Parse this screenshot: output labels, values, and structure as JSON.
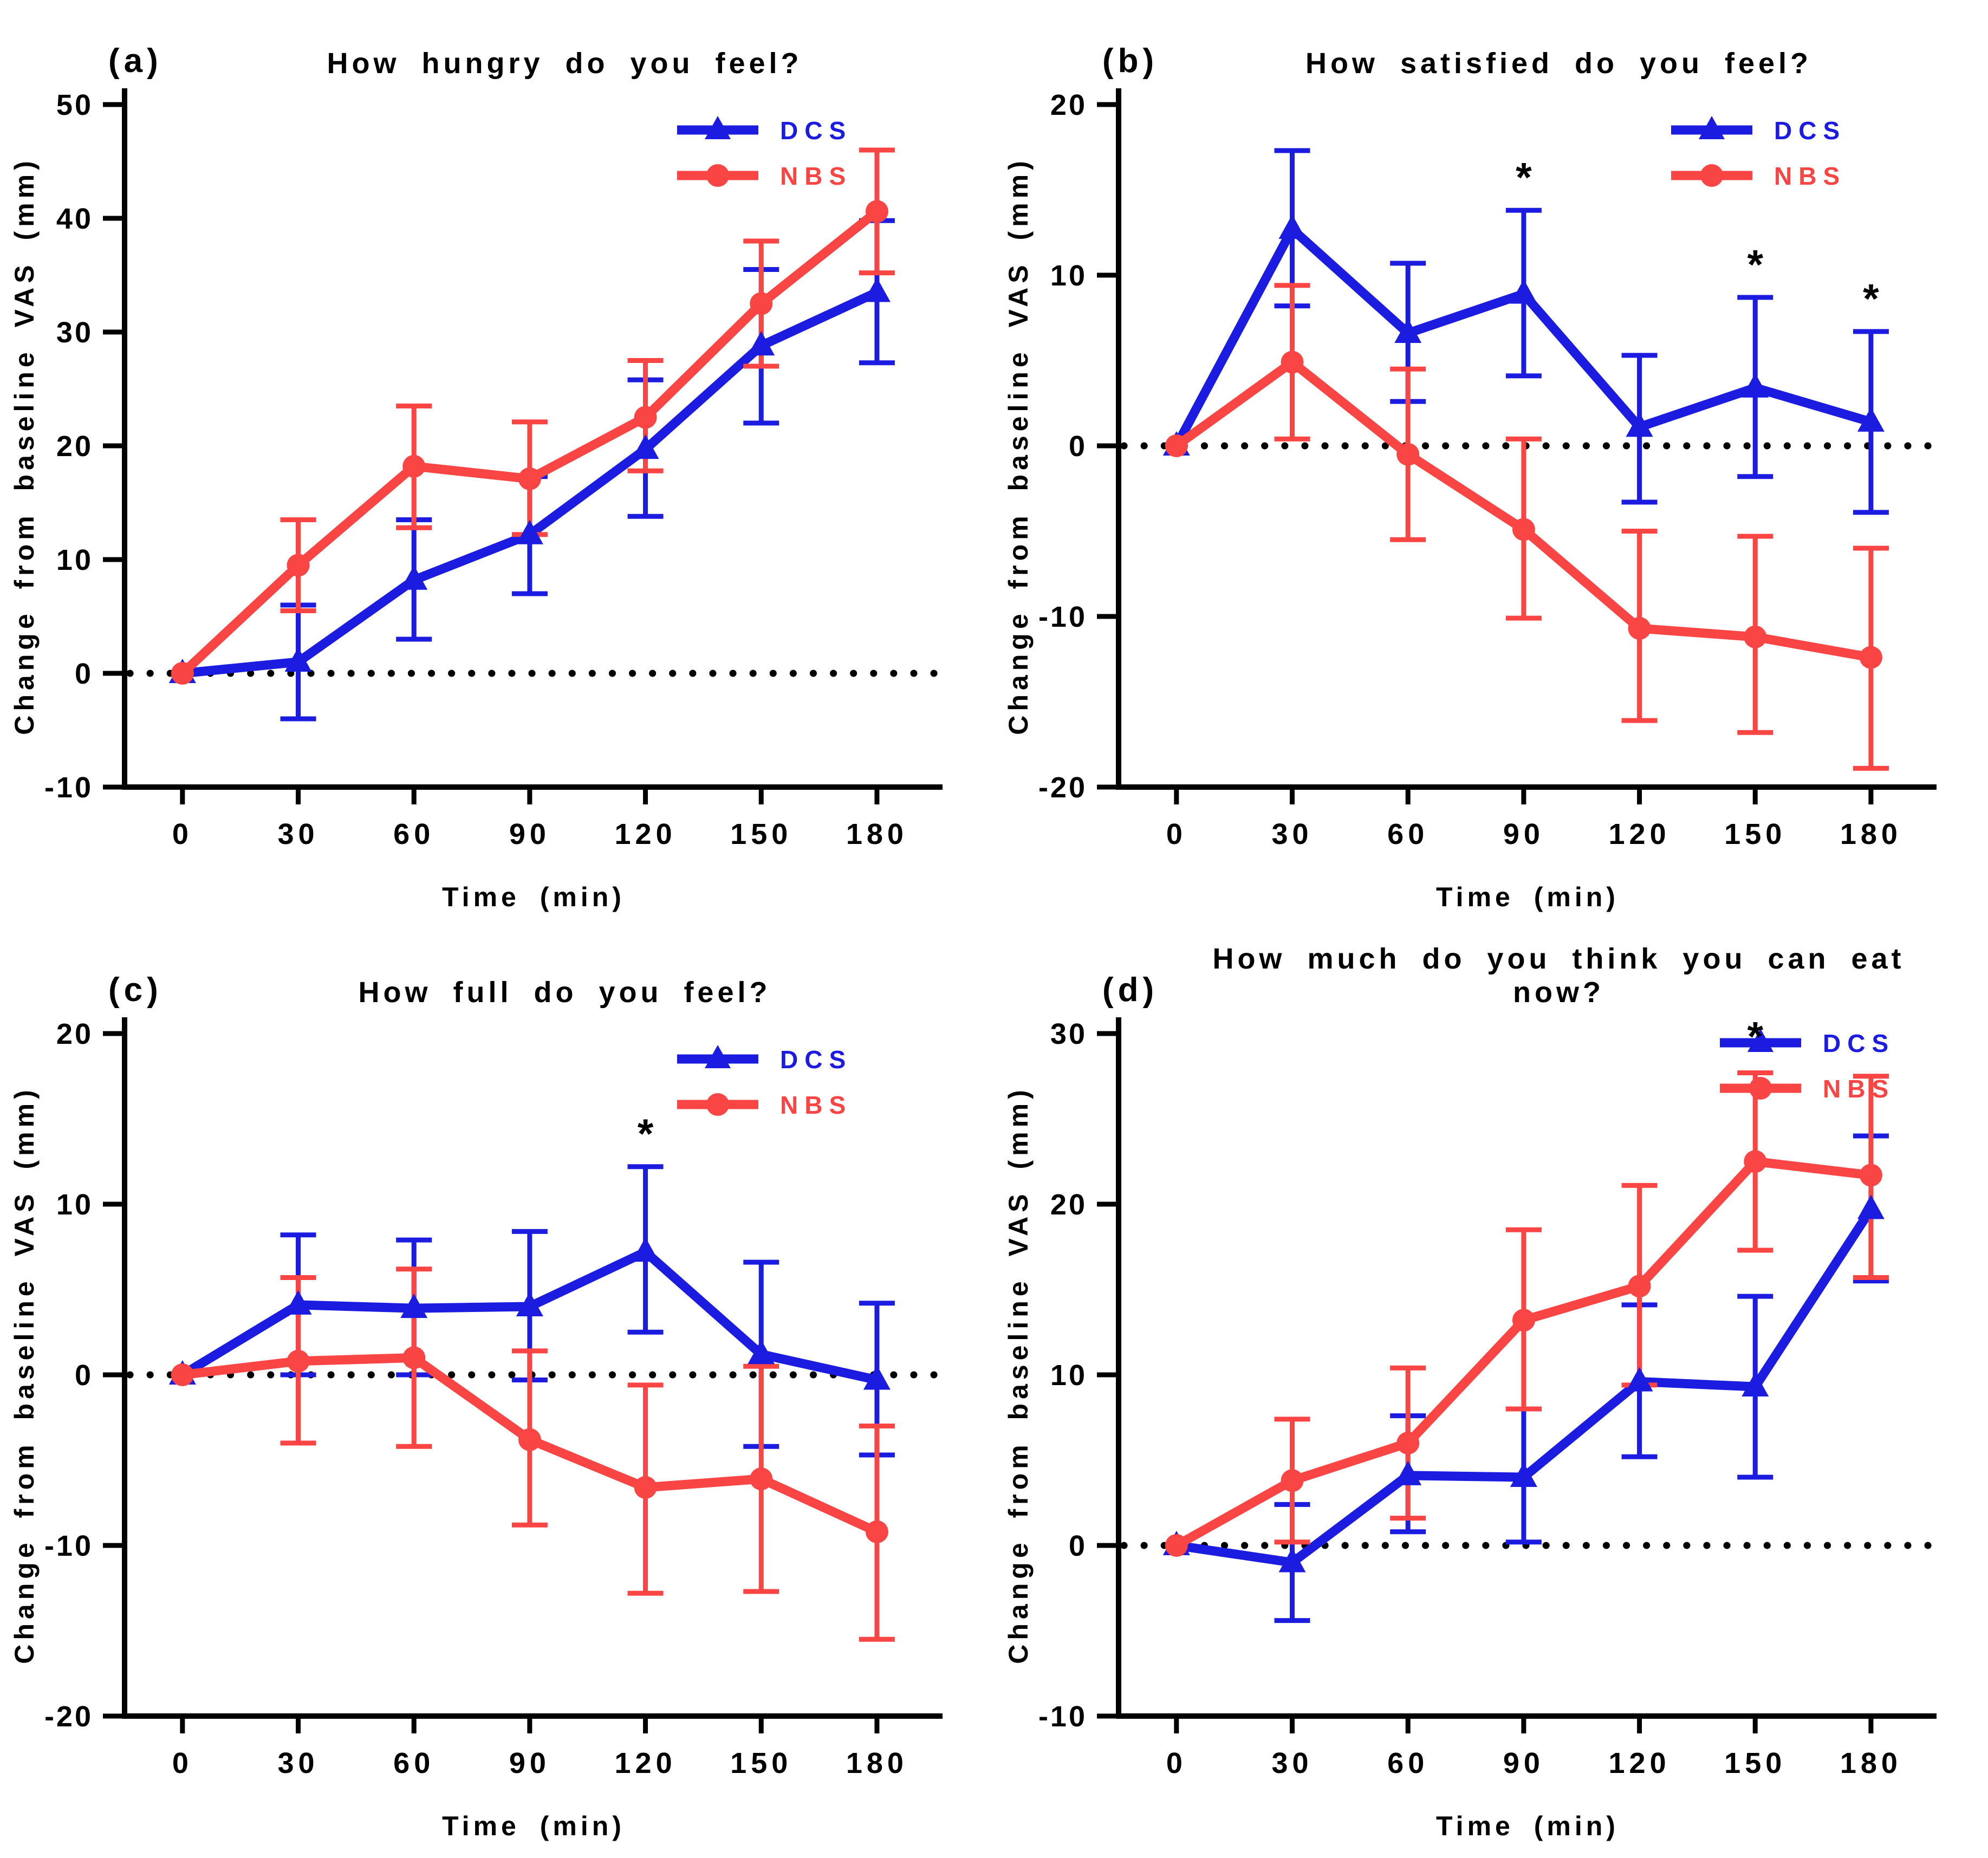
{
  "figure": {
    "description": "Four-panel line figure of appetite visual analogue scale (VAS) responses over time",
    "colors": {
      "dcs": "#1C1CE0",
      "nbs": "#FA4545",
      "axis": "#000000",
      "zero_line": "#000000",
      "star": "#000000"
    },
    "sig_marker": "*"
  },
  "chart_data": [
    {
      "type": "line",
      "tag": "(a)",
      "title": "How hungry do you feel?",
      "xlabel": "Time (min)",
      "ylabel": "Change from baseline VAS (mm)",
      "x": [
        0,
        30,
        60,
        90,
        120,
        150,
        180
      ],
      "xticks": [
        0,
        30,
        60,
        90,
        120,
        150,
        180
      ],
      "xlim": [
        -15,
        197
      ],
      "ylim": [
        -10,
        50
      ],
      "yticks": [
        -10,
        0,
        10,
        20,
        30,
        40,
        50
      ],
      "zero_line": true,
      "grid": false,
      "legend_position": "top-right-inside",
      "legend_x": 1250,
      "legend_y": 92,
      "series": [
        {
          "name": "DCS",
          "marker": "triangle",
          "color": "#1C1CE0",
          "mean": [
            0,
            1.0,
            8.2,
            12.2,
            19.7,
            28.8,
            33.5
          ],
          "lo": [
            0,
            -4.0,
            3.0,
            7.0,
            13.8,
            22.0,
            27.3
          ],
          "hi": [
            0,
            6.0,
            13.5,
            17.3,
            25.8,
            35.5,
            39.8
          ]
        },
        {
          "name": "NBS",
          "marker": "circle",
          "color": "#FA4545",
          "mean": [
            0,
            9.5,
            18.2,
            17.1,
            22.5,
            32.5,
            40.6
          ],
          "lo": [
            0,
            5.5,
            12.8,
            12.2,
            17.8,
            27.0,
            35.2
          ],
          "hi": [
            0,
            13.5,
            23.5,
            22.1,
            27.5,
            38.0,
            46.0
          ]
        }
      ],
      "stars": []
    },
    {
      "type": "line",
      "tag": "(b)",
      "title": "How satisfied do you feel?",
      "xlabel": "Time (min)",
      "ylabel": "Change from baseline VAS (mm)",
      "x": [
        0,
        30,
        60,
        90,
        120,
        150,
        180
      ],
      "xticks": [
        0,
        30,
        60,
        90,
        120,
        150,
        180
      ],
      "xlim": [
        -15,
        197
      ],
      "ylim": [
        -20,
        20
      ],
      "yticks": [
        -20,
        -10,
        0,
        10,
        20
      ],
      "zero_line": true,
      "grid": false,
      "legend_position": "top-right-inside",
      "legend_x": 1250,
      "legend_y": 92,
      "series": [
        {
          "name": "DCS",
          "marker": "triangle",
          "color": "#1C1CE0",
          "mean": [
            0,
            12.7,
            6.6,
            8.9,
            1.1,
            3.4,
            1.4
          ],
          "lo": [
            0,
            8.2,
            2.6,
            4.1,
            -3.3,
            -1.8,
            -3.9
          ],
          "hi": [
            0,
            17.3,
            10.7,
            13.8,
            5.3,
            8.7,
            6.7
          ]
        },
        {
          "name": "NBS",
          "marker": "circle",
          "color": "#FA4545",
          "mean": [
            0,
            4.9,
            -0.5,
            -4.9,
            -10.7,
            -11.2,
            -12.4
          ],
          "lo": [
            0,
            0.4,
            -5.5,
            -10.1,
            -16.1,
            -16.8,
            -18.9
          ],
          "hi": [
            0,
            9.4,
            4.5,
            0.4,
            -5.0,
            -5.3,
            -6.0
          ]
        }
      ],
      "stars": [
        {
          "x": 90,
          "y": 14.9
        },
        {
          "x": 150,
          "y": 9.8
        },
        {
          "x": 180,
          "y": 7.8
        }
      ]
    },
    {
      "type": "line",
      "tag": "(c)",
      "title": "How full do you feel?",
      "xlabel": "Time (min)",
      "ylabel": "Change from baseline VAS (mm)",
      "x": [
        0,
        30,
        60,
        90,
        120,
        150,
        180
      ],
      "xticks": [
        0,
        30,
        60,
        90,
        120,
        150,
        180
      ],
      "xlim": [
        -15,
        197
      ],
      "ylim": [
        -20,
        20
      ],
      "yticks": [
        -20,
        -10,
        0,
        10,
        20
      ],
      "zero_line": true,
      "grid": false,
      "legend_position": "top-right-inside",
      "legend_x": 1250,
      "legend_y": 92,
      "series": [
        {
          "name": "DCS",
          "marker": "triangle",
          "color": "#1C1CE0",
          "mean": [
            0,
            4.1,
            3.9,
            4.0,
            7.2,
            1.2,
            -0.3
          ],
          "lo": [
            0,
            0.0,
            0.0,
            -0.3,
            2.5,
            -4.2,
            -4.7
          ],
          "hi": [
            0,
            8.2,
            7.9,
            8.4,
            12.2,
            6.6,
            4.2
          ]
        },
        {
          "name": "NBS",
          "marker": "circle",
          "color": "#FA4545",
          "mean": [
            0,
            0.8,
            1.0,
            -3.8,
            -6.6,
            -6.1,
            -9.2
          ],
          "lo": [
            0,
            -4.0,
            -4.2,
            -8.8,
            -12.8,
            -12.7,
            -15.5
          ],
          "hi": [
            0,
            5.7,
            6.2,
            1.4,
            -0.6,
            0.5,
            -3.0
          ]
        }
      ],
      "stars": [
        {
          "x": 120,
          "y": 13.3
        }
      ]
    },
    {
      "type": "line",
      "tag": "(d)",
      "title": "How much do you think you can eat now?",
      "xlabel": "Time (min)",
      "ylabel": "Change from baseline VAS (mm)",
      "x": [
        0,
        30,
        60,
        90,
        120,
        150,
        180
      ],
      "xticks": [
        0,
        30,
        60,
        90,
        120,
        150,
        180
      ],
      "xlim": [
        -15,
        197
      ],
      "ylim": [
        -10,
        30
      ],
      "yticks": [
        -10,
        0,
        10,
        20,
        30
      ],
      "zero_line": true,
      "grid": false,
      "legend_position": "top-right-inside",
      "legend_x": 1340,
      "legend_y": 62,
      "series": [
        {
          "name": "DCS",
          "marker": "triangle",
          "color": "#1C1CE0",
          "mean": [
            0,
            -1.0,
            4.1,
            4.0,
            9.6,
            9.3,
            19.7
          ],
          "lo": [
            0,
            -4.4,
            0.8,
            0.2,
            5.2,
            4.0,
            15.5
          ],
          "hi": [
            0,
            2.4,
            7.6,
            8.0,
            14.1,
            14.6,
            24.0
          ]
        },
        {
          "name": "NBS",
          "marker": "circle",
          "color": "#FA4545",
          "mean": [
            0,
            3.8,
            6.0,
            13.2,
            15.2,
            22.5,
            21.7
          ],
          "lo": [
            0,
            0.2,
            1.6,
            8.0,
            9.4,
            17.3,
            15.7
          ],
          "hi": [
            0,
            7.4,
            10.4,
            18.5,
            21.1,
            27.7,
            27.5
          ]
        }
      ],
      "stars": [
        {
          "x": 150,
          "y": 29.0
        }
      ]
    }
  ]
}
